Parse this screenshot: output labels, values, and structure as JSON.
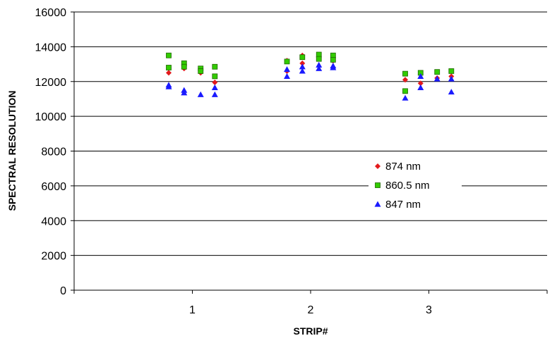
{
  "chart_data": {
    "type": "scatter",
    "title": "",
    "xlabel": "STRIP#",
    "ylabel": "SPECTRAL RESOLUTION",
    "xlim": [
      0,
      4
    ],
    "ylim": [
      0,
      16000
    ],
    "x_ticks": [
      "1",
      "2",
      "3"
    ],
    "x_tick_values": [
      1,
      2,
      3
    ],
    "y_ticks": [
      "0",
      "2000",
      "4000",
      "6000",
      "8000",
      "10000",
      "12000",
      "14000",
      "16000"
    ],
    "y_tick_values": [
      0,
      2000,
      4000,
      6000,
      8000,
      10000,
      12000,
      14000,
      16000
    ],
    "grid": "horizontal",
    "legend_position": "center-right",
    "series": [
      {
        "name": "874 nm",
        "marker": "diamond",
        "color": "#e31a1c",
        "points": [
          [
            0.8,
            12500
          ],
          [
            0.93,
            12750
          ],
          [
            1.07,
            12500
          ],
          [
            1.19,
            11950
          ],
          [
            1.8,
            12600
          ],
          [
            1.8,
            13200
          ],
          [
            1.93,
            13050
          ],
          [
            1.93,
            13500
          ],
          [
            2.07,
            13400
          ],
          [
            2.19,
            13200
          ],
          [
            2.8,
            12100
          ],
          [
            2.93,
            11900
          ],
          [
            3.07,
            12200
          ],
          [
            3.19,
            12300
          ]
        ]
      },
      {
        "name": "860.5 nm",
        "marker": "square",
        "color": "#33cc00",
        "points": [
          [
            0.8,
            13500
          ],
          [
            0.8,
            12800
          ],
          [
            0.93,
            13050
          ],
          [
            0.93,
            12850
          ],
          [
            1.07,
            12750
          ],
          [
            1.07,
            12600
          ],
          [
            1.19,
            12850
          ],
          [
            1.19,
            12300
          ],
          [
            1.8,
            13150
          ],
          [
            1.93,
            13400
          ],
          [
            2.07,
            13550
          ],
          [
            2.07,
            13300
          ],
          [
            2.19,
            13500
          ],
          [
            2.19,
            13250
          ],
          [
            2.8,
            12450
          ],
          [
            2.8,
            11450
          ],
          [
            2.93,
            12500
          ],
          [
            3.07,
            12550
          ],
          [
            3.19,
            12600
          ]
        ]
      },
      {
        "name": "847 nm",
        "marker": "triangle",
        "color": "#1a1aff",
        "points": [
          [
            0.8,
            11800
          ],
          [
            0.8,
            11700
          ],
          [
            0.93,
            11500
          ],
          [
            0.93,
            11350
          ],
          [
            1.07,
            11250
          ],
          [
            1.19,
            11650
          ],
          [
            1.19,
            11250
          ],
          [
            1.8,
            12300
          ],
          [
            1.8,
            12700
          ],
          [
            1.93,
            12600
          ],
          [
            1.93,
            12850
          ],
          [
            2.07,
            12750
          ],
          [
            2.07,
            12950
          ],
          [
            2.19,
            12800
          ],
          [
            2.19,
            12900
          ],
          [
            2.8,
            11050
          ],
          [
            2.93,
            11650
          ],
          [
            2.93,
            12300
          ],
          [
            3.07,
            12150
          ],
          [
            3.19,
            12150
          ],
          [
            3.19,
            11400
          ]
        ]
      }
    ]
  }
}
